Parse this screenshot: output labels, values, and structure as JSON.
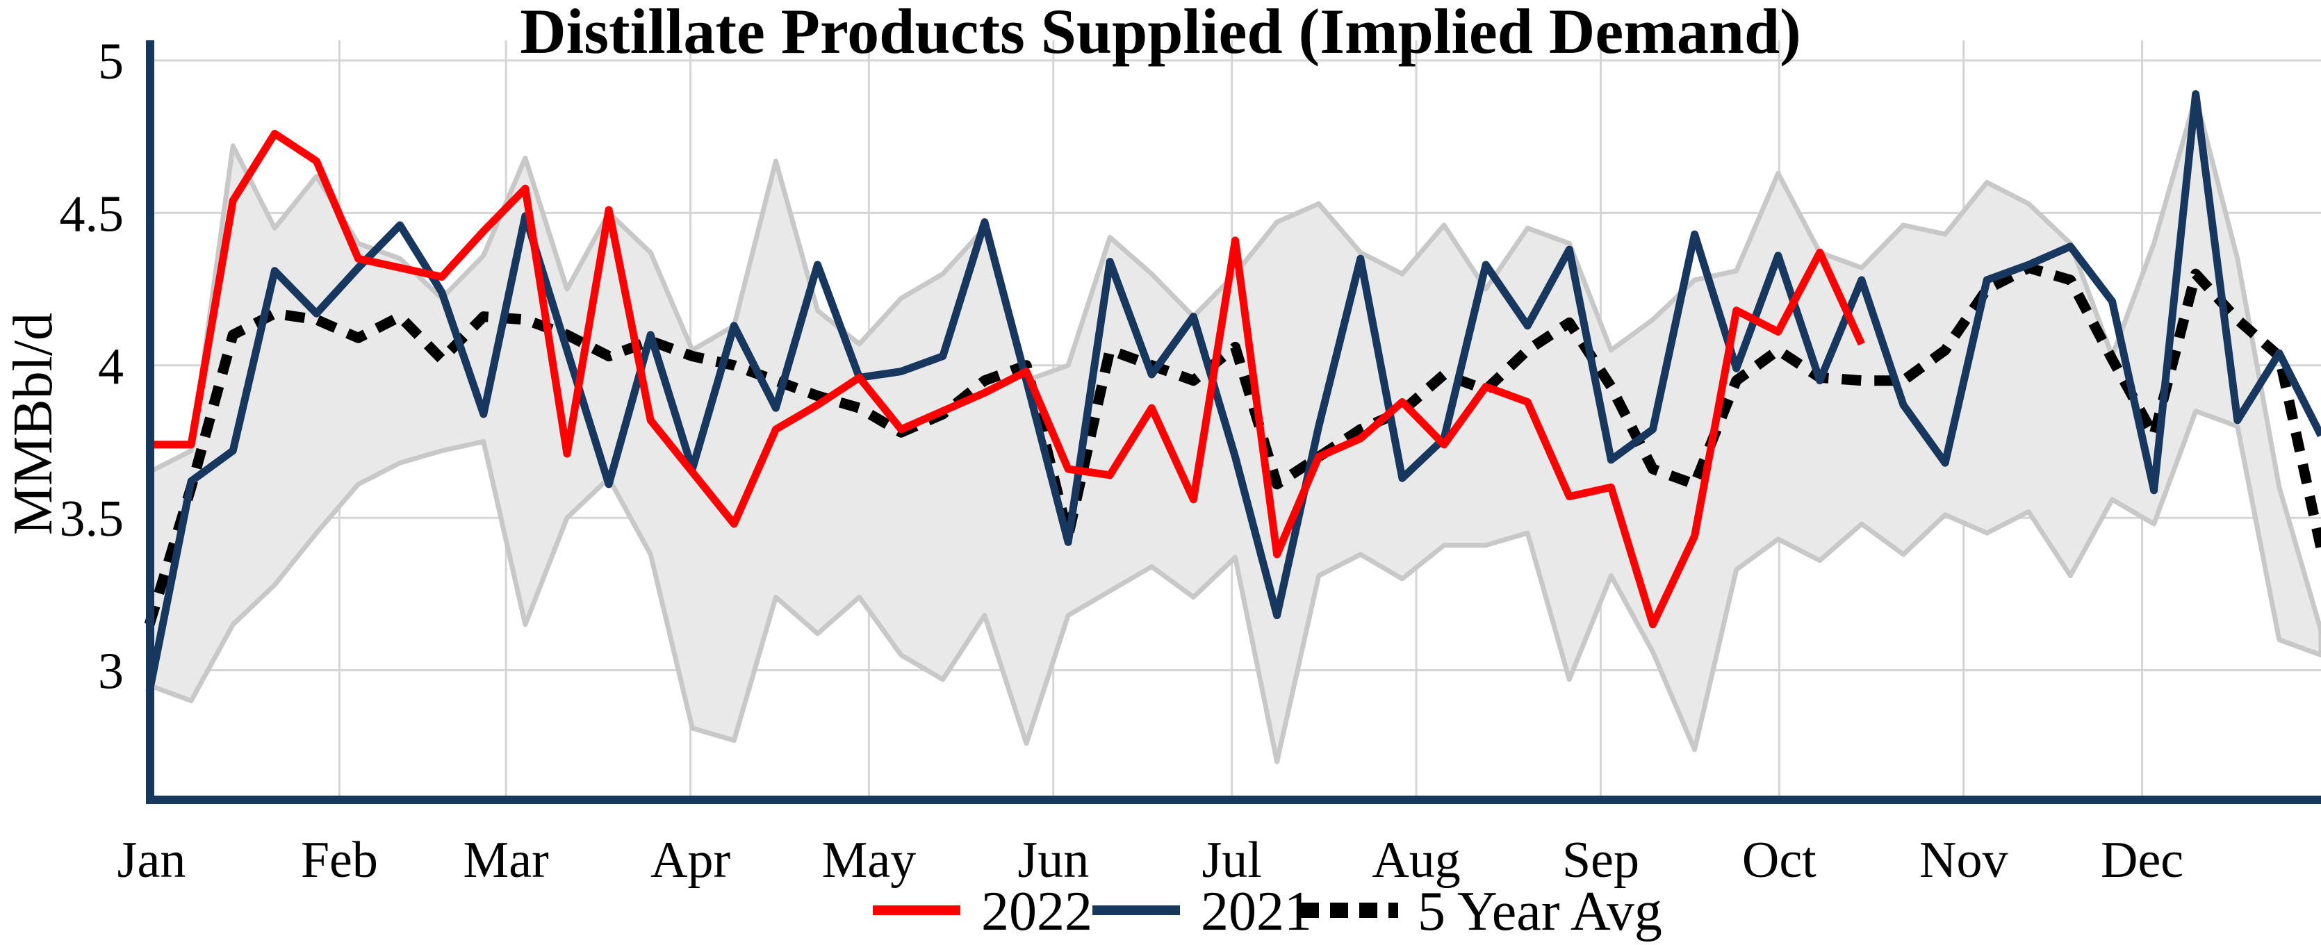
{
  "title": "Distillate Products Supplied (Implied Demand)",
  "y_axis": {
    "label": "MMBbl/d",
    "ticks": [
      {
        "label": "5",
        "value": 5.0
      },
      {
        "label": "4.5",
        "value": 4.5
      },
      {
        "label": "4",
        "value": 4.0
      },
      {
        "label": "3.5",
        "value": 3.5
      },
      {
        "label": "3",
        "value": 3.0
      }
    ]
  },
  "x_axis": {
    "months": [
      "Jan",
      "Feb",
      "Mar",
      "Apr",
      "May",
      "Jun",
      "Jul",
      "Aug",
      "Sep",
      "Oct",
      "Nov",
      "Dec"
    ]
  },
  "legend": {
    "items": [
      {
        "label": "2022",
        "color": "#fe0000",
        "style": "solid"
      },
      {
        "label": "2021",
        "color": "#17375e",
        "style": "solid"
      },
      {
        "label": "5 Year Avg",
        "color": "#000000",
        "style": "dotted"
      }
    ]
  },
  "colors": {
    "background": "#ffffff",
    "gridline": "#d5d5d5",
    "axis_spine": "#17375e",
    "band_fill": "#e9e9e9",
    "band_edge": "#c8c8c8",
    "series_2022": "#fe0000",
    "series_2021": "#17375e",
    "series_avg": "#000000"
  },
  "chart_data": {
    "type": "line",
    "title": "Distillate Products Supplied (Implied Demand)",
    "xlabel": "",
    "ylabel": "MMBbl/d",
    "x_unit": "weekly points, Jan through Dec",
    "ylim": [
      2.585,
      5.065
    ],
    "grid": true,
    "legend_position": "bottom",
    "categories_months": [
      "Jan",
      "Feb",
      "Mar",
      "Apr",
      "May",
      "Jun",
      "Jul",
      "Aug",
      "Sep",
      "Oct",
      "Nov",
      "Dec"
    ],
    "series": [
      {
        "name": "2022",
        "color": "#fe0000",
        "style": "solid",
        "values": [
          3.74,
          3.74,
          4.54,
          4.76,
          4.67,
          4.35,
          4.32,
          4.29,
          4.44,
          4.58,
          3.71,
          4.51,
          3.82,
          3.65,
          3.48,
          3.79,
          3.87,
          3.96,
          3.79,
          3.85,
          3.91,
          3.98,
          3.66,
          3.64,
          3.86,
          3.56,
          4.41,
          3.38,
          3.7,
          3.76,
          3.88,
          3.74,
          3.93,
          3.88,
          3.57,
          3.6,
          3.15,
          3.44,
          4.18,
          4.11,
          4.37,
          4.07
        ]
      },
      {
        "name": "2021",
        "color": "#17375e",
        "style": "solid",
        "values": [
          2.93,
          3.62,
          3.72,
          4.31,
          4.17,
          4.32,
          4.46,
          4.24,
          3.84,
          4.49,
          4.05,
          3.61,
          4.1,
          3.66,
          4.13,
          3.86,
          4.33,
          3.96,
          3.98,
          4.03,
          4.47,
          3.95,
          3.42,
          4.34,
          3.97,
          4.16,
          3.7,
          3.18,
          3.8,
          4.35,
          3.63,
          3.76,
          4.33,
          4.13,
          4.38,
          3.69,
          3.79,
          4.43,
          3.99,
          4.36,
          3.95,
          4.28,
          3.87,
          3.68,
          4.28,
          4.33,
          4.39,
          4.21,
          3.59,
          4.89,
          3.82,
          4.04,
          3.77
        ]
      },
      {
        "name": "5 Year Avg",
        "color": "#000000",
        "style": "dotted",
        "values": [
          3.15,
          3.6,
          4.1,
          4.17,
          4.15,
          4.09,
          4.16,
          4.02,
          4.16,
          4.15,
          4.1,
          4.03,
          4.08,
          4.03,
          4.0,
          3.95,
          3.9,
          3.86,
          3.78,
          3.84,
          3.95,
          4.0,
          3.44,
          4.05,
          4.0,
          3.95,
          4.06,
          3.61,
          3.7,
          3.79,
          3.85,
          3.97,
          3.92,
          4.05,
          4.14,
          3.93,
          3.66,
          3.61,
          3.95,
          4.05,
          3.96,
          3.95,
          3.95,
          4.05,
          4.25,
          4.32,
          4.28,
          4.02,
          3.77,
          4.3,
          4.15,
          4.03,
          3.4
        ]
      }
    ],
    "band": {
      "name": "5 Year Range",
      "fill": "#e9e9e9",
      "edge": "#c8c8c8",
      "upper": [
        3.65,
        3.72,
        4.72,
        4.45,
        4.62,
        4.4,
        4.35,
        4.22,
        4.36,
        4.68,
        4.25,
        4.5,
        4.37,
        4.05,
        4.13,
        4.67,
        4.18,
        4.07,
        4.22,
        4.3,
        4.45,
        3.95,
        4.0,
        4.42,
        4.3,
        4.16,
        4.3,
        4.47,
        4.53,
        4.37,
        4.3,
        4.46,
        4.25,
        4.45,
        4.4,
        4.05,
        4.15,
        4.28,
        4.31,
        4.63,
        4.37,
        4.32,
        4.46,
        4.43,
        4.6,
        4.53,
        4.4,
        4.03,
        4.4,
        4.88,
        4.35,
        3.6,
        3.13
      ],
      "lower": [
        2.95,
        2.9,
        3.15,
        3.28,
        3.45,
        3.61,
        3.68,
        3.72,
        3.75,
        3.15,
        3.5,
        3.63,
        3.38,
        2.81,
        2.77,
        3.24,
        3.12,
        3.24,
        3.05,
        2.97,
        3.18,
        2.76,
        3.18,
        3.26,
        3.34,
        3.24,
        3.37,
        2.7,
        3.31,
        3.38,
        3.3,
        3.41,
        3.41,
        3.45,
        2.97,
        3.31,
        3.06,
        2.74,
        3.33,
        3.43,
        3.36,
        3.48,
        3.38,
        3.51,
        3.45,
        3.52,
        3.31,
        3.56,
        3.48,
        3.85,
        3.8,
        3.1,
        3.05
      ]
    }
  }
}
